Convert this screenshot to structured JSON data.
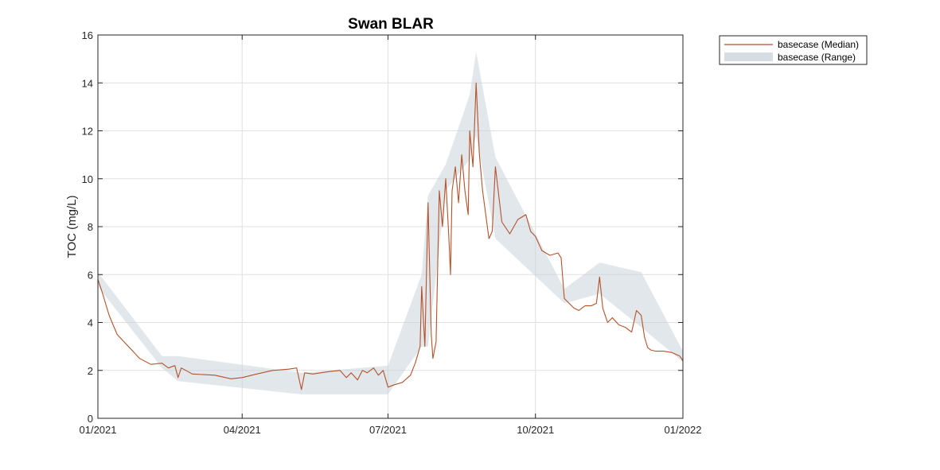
{
  "chart_data": {
    "type": "line",
    "title": "Swan BLAR",
    "xlabel": "",
    "ylabel": "TOC (mg/L)",
    "xlim": [
      "2021-01-01",
      "2022-01-01"
    ],
    "ylim": [
      0,
      16
    ],
    "x_ticks": [
      "2021-01-01",
      "2021-04-01",
      "2021-07-01",
      "2021-10-01",
      "2022-01-01"
    ],
    "x_tick_labels": [
      "01/2021",
      "04/2021",
      "07/2021",
      "10/2021",
      "01/2022"
    ],
    "y_ticks": [
      0,
      2,
      4,
      6,
      8,
      10,
      12,
      14,
      16
    ],
    "y_tick_labels": [
      "0",
      "2",
      "4",
      "6",
      "8",
      "10",
      "12",
      "14",
      "16"
    ],
    "grid": true,
    "legend_position": "outside-top-right",
    "colors": {
      "median": "#b5522b",
      "range": "#c8d3da"
    },
    "series": [
      {
        "name": "basecase (Median)",
        "kind": "line",
        "x": [
          "2021-01-01",
          "2021-01-04",
          "2021-01-08",
          "2021-01-13",
          "2021-01-20",
          "2021-01-27",
          "2021-02-03",
          "2021-02-10",
          "2021-02-14",
          "2021-02-18",
          "2021-02-20",
          "2021-02-22",
          "2021-03-01",
          "2021-03-15",
          "2021-03-25",
          "2021-04-01",
          "2021-04-10",
          "2021-04-20",
          "2021-04-30",
          "2021-05-05",
          "2021-05-08",
          "2021-05-10",
          "2021-05-15",
          "2021-05-25",
          "2021-06-01",
          "2021-06-05",
          "2021-06-08",
          "2021-06-12",
          "2021-06-15",
          "2021-06-18",
          "2021-06-22",
          "2021-06-25",
          "2021-06-28",
          "2021-07-01",
          "2021-07-05",
          "2021-07-10",
          "2021-07-15",
          "2021-07-18",
          "2021-07-21",
          "2021-07-22",
          "2021-07-24",
          "2021-07-26",
          "2021-07-28",
          "2021-07-29",
          "2021-07-31",
          "2021-08-02",
          "2021-08-04",
          "2021-08-06",
          "2021-08-08",
          "2021-08-09",
          "2021-08-10",
          "2021-08-12",
          "2021-08-14",
          "2021-08-16",
          "2021-08-18",
          "2021-08-20",
          "2021-08-21",
          "2021-08-23",
          "2021-08-25",
          "2021-08-27",
          "2021-08-29",
          "2021-08-31",
          "2021-09-02",
          "2021-09-04",
          "2021-09-06",
          "2021-09-10",
          "2021-09-15",
          "2021-09-20",
          "2021-09-25",
          "2021-09-28",
          "2021-10-01",
          "2021-10-05",
          "2021-10-10",
          "2021-10-15",
          "2021-10-17",
          "2021-10-19",
          "2021-10-22",
          "2021-10-25",
          "2021-10-28",
          "2021-11-01",
          "2021-11-05",
          "2021-11-08",
          "2021-11-10",
          "2021-11-12",
          "2021-11-15",
          "2021-11-18",
          "2021-11-22",
          "2021-11-26",
          "2021-11-30",
          "2021-12-03",
          "2021-12-06",
          "2021-12-08",
          "2021-12-10",
          "2021-12-12",
          "2021-12-15",
          "2021-12-20",
          "2021-12-25",
          "2021-12-30",
          "2022-01-01"
        ],
        "y": [
          5.8,
          5.2,
          4.3,
          3.5,
          3.0,
          2.5,
          2.25,
          2.3,
          2.1,
          2.2,
          1.7,
          2.1,
          1.85,
          1.8,
          1.65,
          1.7,
          1.85,
          2.0,
          2.05,
          2.1,
          1.2,
          1.9,
          1.85,
          1.95,
          2.0,
          1.7,
          1.9,
          1.6,
          2.0,
          1.9,
          2.1,
          1.8,
          2.0,
          1.3,
          1.4,
          1.5,
          1.8,
          2.3,
          3.0,
          5.5,
          3.0,
          9.0,
          3.5,
          2.5,
          3.2,
          9.5,
          8.0,
          10.0,
          7.5,
          6.0,
          9.5,
          10.5,
          9.0,
          11.0,
          9.5,
          8.5,
          12.0,
          10.5,
          14.0,
          11.0,
          9.5,
          8.5,
          7.5,
          7.8,
          10.5,
          8.2,
          7.7,
          8.3,
          8.5,
          7.8,
          7.6,
          7.0,
          6.8,
          6.9,
          6.7,
          5.0,
          4.8,
          4.6,
          4.5,
          4.7,
          4.7,
          4.8,
          5.9,
          4.6,
          4.0,
          4.2,
          3.9,
          3.8,
          3.6,
          4.5,
          4.3,
          3.4,
          2.95,
          2.85,
          2.8,
          2.8,
          2.75,
          2.6,
          2.4
        ]
      },
      {
        "name": "basecase (Range)",
        "kind": "band",
        "x": [
          "2021-01-01",
          "2021-02-10",
          "2021-02-20",
          "2021-05-08",
          "2021-07-01",
          "2021-07-22",
          "2021-07-26",
          "2021-08-06",
          "2021-08-21",
          "2021-08-25",
          "2021-09-06",
          "2021-10-19",
          "2021-11-10",
          "2021-12-06",
          "2022-01-01"
        ],
        "lower": [
          5.5,
          2.1,
          1.55,
          1.0,
          1.0,
          3.0,
          3.0,
          9.5,
          10.8,
          11.8,
          7.5,
          4.8,
          5.2,
          3.8,
          2.35
        ],
        "upper": [
          6.1,
          2.6,
          2.6,
          1.9,
          2.2,
          6.0,
          9.3,
          10.6,
          13.5,
          15.3,
          10.9,
          5.4,
          6.5,
          6.1,
          2.8
        ]
      }
    ]
  }
}
